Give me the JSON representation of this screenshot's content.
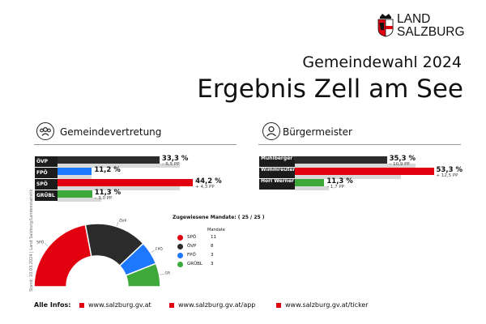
{
  "logo": {
    "line1": "LAND",
    "line2": "SALZBURG"
  },
  "header": {
    "subtitle": "Gemeindewahl 2024",
    "title": "Ergebnis Zell am See"
  },
  "sections": {
    "council": "Gemeindevertretung",
    "mayor": "Bürgermeister"
  },
  "stand_note": "Stand: 10.03.2024 | Land Salzburg/Landesstatistik",
  "colors": {
    "red": "#e1000f",
    "black": "#2b2b2b",
    "blue": "#1e78ff",
    "green": "#3fa83a",
    "ghost": "#d9d9d9"
  },
  "chart_data": [
    {
      "type": "bar",
      "title": "Gemeindevertretung",
      "categories": [
        "ÖVP",
        "FPÖ",
        "SPÖ",
        "GRÜBL"
      ],
      "values": [
        33.3,
        11.2,
        44.2,
        11.3
      ],
      "previous_values": [
        39.8,
        11.2,
        39.9,
        14.3
      ],
      "value_labels": [
        "33,3 %",
        "11,2 %",
        "44,2 %",
        "11,3 %"
      ],
      "diff_labels": [
        "– 6,5 PP",
        "",
        "+ 4,3 PP",
        "– 3,0 PP"
      ],
      "colors": [
        "#2b2b2b",
        "#1e78ff",
        "#e1000f",
        "#3fa83a"
      ],
      "xlim": [
        0,
        55
      ]
    },
    {
      "type": "bar",
      "title": "Bürgermeister",
      "categories": [
        "Mühlberger Salome",
        "Wimmreuter Andreas",
        "Hörl Werner"
      ],
      "values": [
        35.3,
        53.3,
        11.3
      ],
      "previous_values": [
        46.2,
        40.8,
        13.0
      ],
      "value_labels": [
        "35,3 %",
        "53,3 %",
        "11,3 %"
      ],
      "diff_labels": [
        "– 10,9 PP",
        "+ 12,5 PP",
        "– 1,7 PP"
      ],
      "colors": [
        "#2b2b2b",
        "#e1000f",
        "#3fa83a"
      ],
      "xlim": [
        0,
        55
      ]
    },
    {
      "type": "pie",
      "title": "Zugewiesene Mandate: ( 25 / 25 )",
      "column_header": "Mandate",
      "categories": [
        "SPÖ",
        "ÖVP",
        "FPÖ",
        "GRÜBL"
      ],
      "values": [
        11,
        8,
        3,
        3
      ],
      "colors": [
        "#e1000f",
        "#2b2b2b",
        "#1e78ff",
        "#3fa83a"
      ],
      "arc_labels": [
        "SPÖ",
        "ÖVP",
        "FPÖ",
        "GRÜBL"
      ]
    }
  ],
  "footer": {
    "label": "Alle Infos:",
    "links": [
      "www.salzburg.gv.at",
      "www.salzburg.gv.at/app",
      "www.salzburg.gv.at/ticker"
    ]
  }
}
